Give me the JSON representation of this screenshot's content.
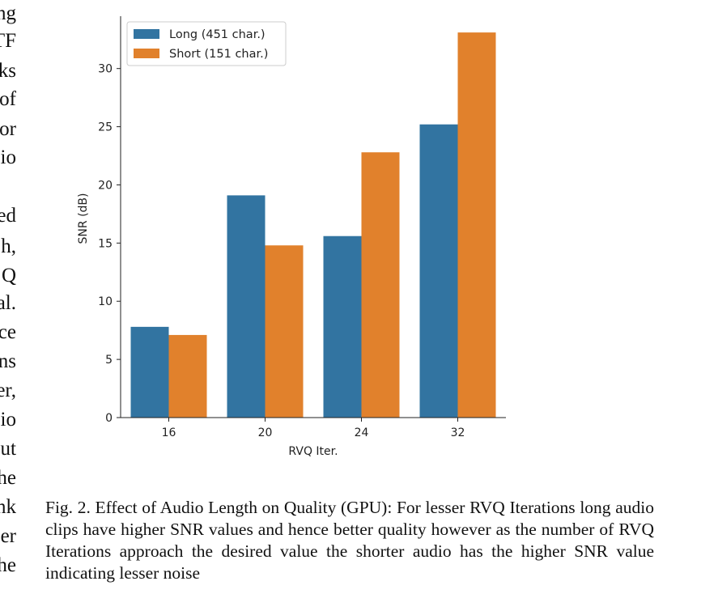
{
  "left_column_fragments": [
    "ng",
    "TF",
    "ks",
    "of",
    "or",
    "io",
    "ed",
    "h,",
    "Q",
    "al.",
    "ce",
    "ns",
    "er,",
    "io",
    "ut",
    "he",
    "nk",
    "er",
    "he"
  ],
  "chart_data": {
    "type": "bar",
    "title": "",
    "xlabel": "RVQ Iter.",
    "ylabel": "SNR (dB)",
    "categories": [
      "16",
      "20",
      "24",
      "32"
    ],
    "ylim": [
      0,
      34.5
    ],
    "yticks": [
      0,
      5,
      10,
      15,
      20,
      25,
      30
    ],
    "grid": false,
    "legend_position": "top-left",
    "series": [
      {
        "name": "Long (451 char.)",
        "color": "#3274a1",
        "values": [
          7.8,
          19.1,
          15.6,
          25.2
        ]
      },
      {
        "name": "Short (151 char.)",
        "color": "#e1812c",
        "values": [
          7.1,
          14.8,
          22.8,
          33.1
        ]
      }
    ]
  },
  "caption": {
    "text": "Fig. 2.  Effect of Audio Length on Quality (GPU): For lesser RVQ Iterations long audio clips have higher SNR values and hence better quality however as the number of RVQ Iterations approach the desired value the shorter audio has the higher SNR value indicating lesser noise"
  }
}
